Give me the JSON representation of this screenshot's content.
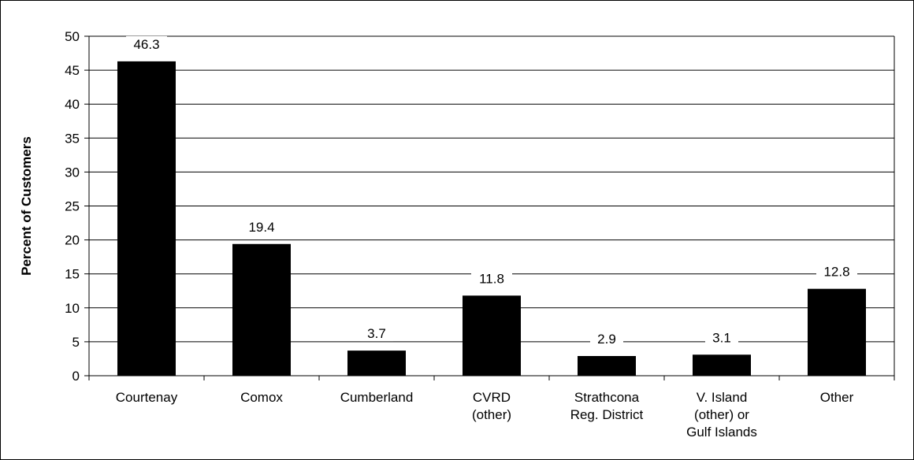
{
  "chart_data": {
    "type": "bar",
    "title": "",
    "xlabel": "",
    "ylabel": "Percent of Customers",
    "ylim": [
      0,
      50
    ],
    "ytick_step": 5,
    "yticks": [
      "0",
      "5",
      "10",
      "15",
      "20",
      "25",
      "30",
      "35",
      "40",
      "45",
      "50"
    ],
    "grid": true,
    "legend": "none",
    "categories": [
      [
        "Courtenay"
      ],
      [
        "Comox"
      ],
      [
        "Cumberland"
      ],
      [
        "CVRD",
        "(other)"
      ],
      [
        "Strathcona",
        "Reg. District"
      ],
      [
        "V. Island",
        "(other) or",
        "Gulf Islands"
      ],
      [
        "Other"
      ]
    ],
    "values": [
      46.3,
      19.4,
      3.7,
      11.8,
      2.9,
      3.1,
      12.8
    ],
    "data_labels": [
      "46.3",
      "19.4",
      "3.7",
      "11.8",
      "2.9",
      "3.1",
      "12.8"
    ],
    "colors": {
      "bar": "#000000",
      "grid": "#000000",
      "background": "#ffffff"
    }
  }
}
